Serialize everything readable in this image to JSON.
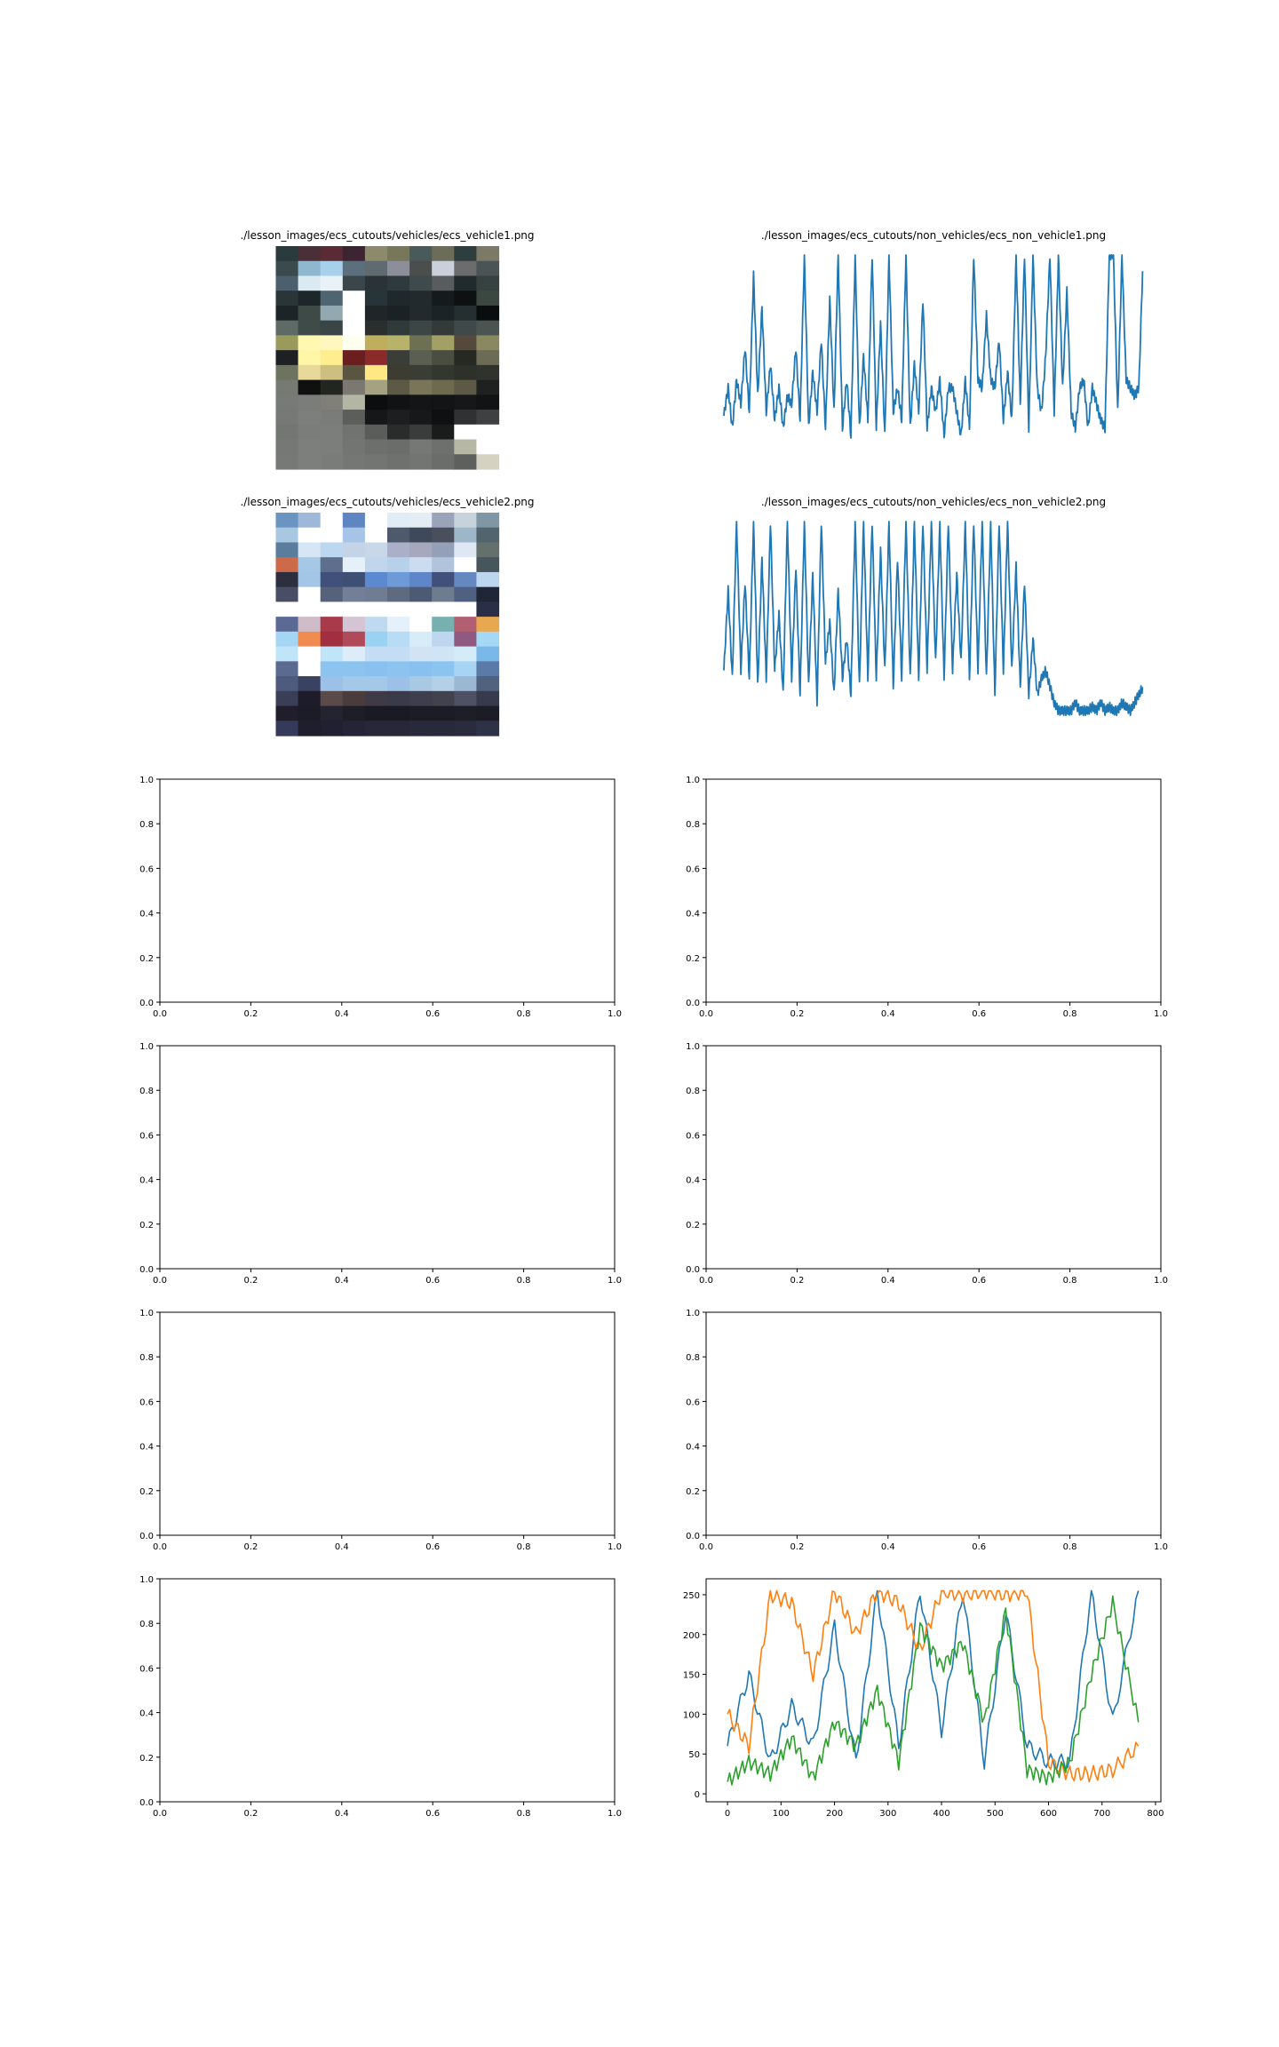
{
  "figure": {
    "panels": [
      {
        "kind": "image",
        "title": "./lesson_images/ecs_cutouts/vehicles/ecs_vehicle1.png",
        "pixels": [
          [
            "#2b3a3c",
            "#4a2f38",
            "#5a2a35",
            "#3c2530",
            "#8c8a6a",
            "#77775c",
            "#4a5a5a",
            "#6c6d58",
            "#2e3d3e",
            "#7c7a66"
          ],
          [
            "#3a4a4d",
            "#8fb8cf",
            "#a6d0ec",
            "#5b6f7c",
            "#5f6b70",
            "#8c8f9a",
            "#4a4e4c",
            "#c9d0dc",
            "#6c6c6c",
            "#4b5455"
          ],
          [
            "#4c5f6c",
            "#dbe9f2",
            "#e8f2f7",
            "#3a4649",
            "#2a3335",
            "#2e3a3d",
            "#3e4a4b",
            "#585c5e",
            "#212b2c",
            "#36423f"
          ],
          [
            "#2a3538",
            "#1d2629",
            "#4e6470",
            "#ffffff",
            "#27343a",
            "#1f282b",
            "#222a2e",
            "#151b1c",
            "#0e1112",
            "#3b4841"
          ],
          [
            "#1d2427",
            "#3d4a45",
            "#93a9b1",
            "#ffffff",
            "#1e2628",
            "#1a2225",
            "#222a2d",
            "#1c2326",
            "#262f30",
            "#0a0d0d"
          ],
          [
            "#5e6a66",
            "#3e4b48",
            "#3b4545",
            "#ffffff",
            "#2a2f2e",
            "#303a39",
            "#3c4644",
            "#333a37",
            "#40494a",
            "#4a5551"
          ],
          [
            "#9a9a5c",
            "#fff8b0",
            "#fff6c0",
            "#fffff0",
            "#bfae5c",
            "#b8b36a",
            "#6d7052",
            "#a3a066",
            "#55493c",
            "#8a8860"
          ],
          [
            "#1e2024",
            "#fff6a8",
            "#ffee90",
            "#6a1e1e",
            "#8a2a2a",
            "#3a3d38",
            "#5a5f51",
            "#4a4d40",
            "#262822",
            "#6c6c56"
          ],
          [
            "#6c7460",
            "#e8d99a",
            "#cdbf80",
            "#5a5540",
            "#ffe884",
            "#3c3c30",
            "#3a3d36",
            "#34372f",
            "#2e302a",
            "#30332d"
          ],
          [
            "#767a72",
            "#101010",
            "#222520",
            "#7a7870",
            "#a4a280",
            "#5c5a44",
            "#7a7558",
            "#6e6a50",
            "#5c5945",
            "#1f2120"
          ],
          [
            "#777a76",
            "#7a7d79",
            "#807f78",
            "#b3b6a4",
            "#0c0d0e",
            "#101213",
            "#131516",
            "#121415",
            "#151718",
            "#111314"
          ],
          [
            "#767976",
            "#7c7f7c",
            "#7a7c79",
            "#5b5e5b",
            "#151718",
            "#1c1e1f",
            "#161819",
            "#0f1011",
            "#2f3233",
            "#3e4142"
          ],
          [
            "#737673",
            "#7a7d7a",
            "#7b7e7b",
            "#707370",
            "#5a5d5a",
            "#2a2c2c",
            "#3a3c3c",
            "#1a1b1b",
            "#ffffff",
            "#ffffff"
          ],
          [
            "#757875",
            "#7c7f7c",
            "#7b7e7b",
            "#727572",
            "#6c6f6c",
            "#6a6d6a",
            "#757875",
            "#6d706d",
            "#b7b7a6",
            "#ffffff"
          ],
          [
            "#767976",
            "#7c7f7c",
            "#797c79",
            "#747774",
            "#727572",
            "#6e716e",
            "#727572",
            "#6a6d6a",
            "#5d605d",
            "#d5d2c1"
          ]
        ]
      },
      {
        "kind": "series",
        "title": "./lesson_images/ecs_cutouts/non_vehicles/ecs_non_vehicle1.png",
        "color": "#1f77b4",
        "values": [
          55,
          90,
          40,
          100,
          70,
          140,
          60,
          230,
          80,
          190,
          60,
          120,
          50,
          90,
          40,
          80,
          70,
          140,
          50,
          255,
          40,
          110,
          60,
          150,
          40,
          200,
          60,
          255,
          40,
          100,
          30,
          255,
          40,
          130,
          50,
          255,
          40,
          170,
          30,
          255,
          60,
          90,
          50,
          255,
          40,
          120,
          60,
          200,
          40,
          90,
          60,
          100,
          30,
          90,
          90,
          60,
          30,
          100,
          40,
          255,
          100,
          90,
          180,
          100,
          90,
          150,
          50,
          110,
          50,
          255,
          70,
          255,
          40,
          255,
          90,
          60,
          130,
          255,
          60,
          255,
          90,
          210,
          60,
          40,
          90,
          100,
          40,
          90,
          70,
          50,
          40,
          255,
          255,
          60,
          255,
          100,
          90,
          80,
          90,
          255
        ],
        "ylim": [
          0,
          255
        ]
      },
      {
        "kind": "image",
        "title": "./lesson_images/ecs_cutouts/vehicles/ecs_vehicle2.png",
        "pixels": [
          [
            "#6a94c2",
            "#9db8d8",
            "#ffffff",
            "#5f85c3",
            "#ffffff",
            "#e0ecf6",
            "#e4edf3",
            "#9aa4b8",
            "#c6d2dc",
            "#7f97a4"
          ],
          [
            "#a8c7e0",
            "#ffffff",
            "#ffffff",
            "#a6c3e8",
            "#ffffff",
            "#4e5a6b",
            "#3e4a5a",
            "#4a4f5e",
            "#9db7c8",
            "#52656e"
          ],
          [
            "#5a7d9d",
            "#d6e6f5",
            "#bcd7f0",
            "#c4d4e6",
            "#c8d8e8",
            "#aab0c8",
            "#a6a8be",
            "#94a0b8",
            "#dfe6f4",
            "#63706b"
          ],
          [
            "#cd6a4a",
            "#a4c8e6",
            "#5e6f8e",
            "#e6f0f8",
            "#c1d5ec",
            "#b8d1ea",
            "#cbdcf0",
            "#b2c4dc",
            "#ffffff",
            "#47555d"
          ],
          [
            "#2d2e3e",
            "#a4c6e6",
            "#40507a",
            "#3e4f74",
            "#5c8ad0",
            "#6e9ad8",
            "#5e86c8",
            "#40507a",
            "#6688c0",
            "#bcd6f0"
          ],
          [
            "#4a4d66",
            "#ffffff",
            "#56627a",
            "#737f96",
            "#6f7c92",
            "#5d6a80",
            "#4c5a74",
            "#6e7c90",
            "#506080",
            "#1f2636"
          ],
          [
            "#ffffff",
            "#ffffff",
            "#ffffff",
            "#ffffff",
            "#ffffff",
            "#ffffff",
            "#ffffff",
            "#ffffff",
            "#ffffff",
            "#2a2e46"
          ],
          [
            "#5a6a94",
            "#d0bcc8",
            "#a83a4a",
            "#d4c4d4",
            "#bfdaf0",
            "#e4f0fa",
            "#ffffff",
            "#78b0b0",
            "#b06070",
            "#e8a850"
          ],
          [
            "#a4d6f4",
            "#f08c50",
            "#a03040",
            "#b04a5a",
            "#9ad2f4",
            "#b8dcf4",
            "#d8ecf8",
            "#bfd6f0",
            "#905a80",
            "#a4d8f4"
          ],
          [
            "#c0e4f8",
            "#ffffff",
            "#c0e4f8",
            "#dcecf8",
            "#c4dcf4",
            "#c4dcf4",
            "#d2e4f4",
            "#cfe4f4",
            "#d4ecf8",
            "#7ab8e8"
          ],
          [
            "#5a6a90",
            "#ffffff",
            "#8cc4f0",
            "#8cc4f0",
            "#88c0f0",
            "#8cc4f0",
            "#88c0f0",
            "#8cc4f0",
            "#a8d4f4",
            "#5a7aa8"
          ],
          [
            "#4e5a7e",
            "#3a4262",
            "#9cc0e8",
            "#a4c8e8",
            "#a4c8e8",
            "#9cc0e8",
            "#a8c8e4",
            "#b4d0e8",
            "#9ab8d4",
            "#50627e"
          ],
          [
            "#3a3e56",
            "#1e1c2a",
            "#5a4a4a",
            "#4a3c3c",
            "#403a46",
            "#3a3a4a",
            "#3e3e4e",
            "#40424e",
            "#4e5064",
            "#363a4c"
          ],
          [
            "#1f1e2a",
            "#1c1c28",
            "#242430",
            "#1e1e28",
            "#1a1a24",
            "#1a1a24",
            "#1c1c26",
            "#1c1c26",
            "#1e1e28",
            "#1c1c26"
          ],
          [
            "#35395a",
            "#1f1e2c",
            "#202030",
            "#242436",
            "#262838",
            "#262838",
            "#282a3c",
            "#282a3c",
            "#2a2c3e",
            "#2e3246"
          ]
        ]
      },
      {
        "kind": "series",
        "title": "./lesson_images/ecs_cutouts/non_vehicles/ecs_non_vehicle2.png",
        "color": "#1f77b4",
        "values": [
          70,
          170,
          60,
          255,
          70,
          180,
          60,
          255,
          50,
          210,
          60,
          255,
          70,
          140,
          40,
          255,
          60,
          200,
          40,
          255,
          50,
          190,
          30,
          255,
          80,
          130,
          40,
          170,
          60,
          110,
          40,
          255,
          50,
          255,
          60,
          255,
          60,
          220,
          70,
          255,
          50,
          210,
          60,
          255,
          60,
          255,
          60,
          255,
          70,
          255,
          80,
          255,
          60,
          255,
          70,
          190,
          80,
          255,
          60,
          255,
          70,
          255,
          60,
          255,
          40,
          255,
          70,
          255,
          70,
          200,
          50,
          180,
          40,
          110,
          40,
          60,
          70,
          50,
          30,
          20,
          20,
          20,
          20,
          30,
          20,
          20,
          20,
          25,
          20,
          30,
          20,
          25,
          20,
          20,
          30,
          25,
          20,
          30,
          40,
          50
        ],
        "ylim": [
          0,
          255
        ]
      },
      {
        "kind": "empty"
      },
      {
        "kind": "empty"
      },
      {
        "kind": "empty"
      },
      {
        "kind": "empty"
      },
      {
        "kind": "empty"
      },
      {
        "kind": "empty"
      },
      {
        "kind": "empty"
      },
      {
        "kind": "multi",
        "colors": [
          "#1f77b4",
          "#ff7f0e",
          "#2ca02c"
        ],
        "xlim": [
          -40,
          810
        ],
        "ylim": [
          -10,
          270
        ]
      }
    ]
  },
  "empty_axes": {
    "xticks": [
      "0.0",
      "0.2",
      "0.4",
      "0.6",
      "0.8",
      "1.0"
    ],
    "yticks": [
      "0.0",
      "0.2",
      "0.4",
      "0.6",
      "0.8",
      "1.0"
    ]
  },
  "chart_data": {
    "type": "line",
    "x": [
      0,
      40,
      80,
      120,
      160,
      200,
      240,
      280,
      320,
      360,
      400,
      440,
      480,
      520,
      560,
      600,
      640,
      680,
      720,
      768
    ],
    "xticks": [
      "0",
      "100",
      "200",
      "300",
      "400",
      "500",
      "600",
      "700",
      "800"
    ],
    "yticks": [
      "0",
      "50",
      "100",
      "150",
      "200",
      "250"
    ],
    "series": [
      {
        "values": [
          60,
          150,
          40,
          110,
          60,
          210,
          40,
          255,
          60,
          255,
          80,
          255,
          40,
          230,
          60,
          40,
          40,
          255,
          90,
          255
        ]
      },
      {
        "values": [
          100,
          60,
          250,
          240,
          150,
          255,
          200,
          255,
          240,
          180,
          255,
          250,
          255,
          250,
          255,
          40,
          25,
          25,
          30,
          60
        ]
      },
      {
        "values": [
          15,
          40,
          25,
          70,
          20,
          90,
          60,
          130,
          40,
          210,
          160,
          190,
          90,
          230,
          30,
          20,
          40,
          150,
          240,
          90
        ]
      }
    ]
  }
}
